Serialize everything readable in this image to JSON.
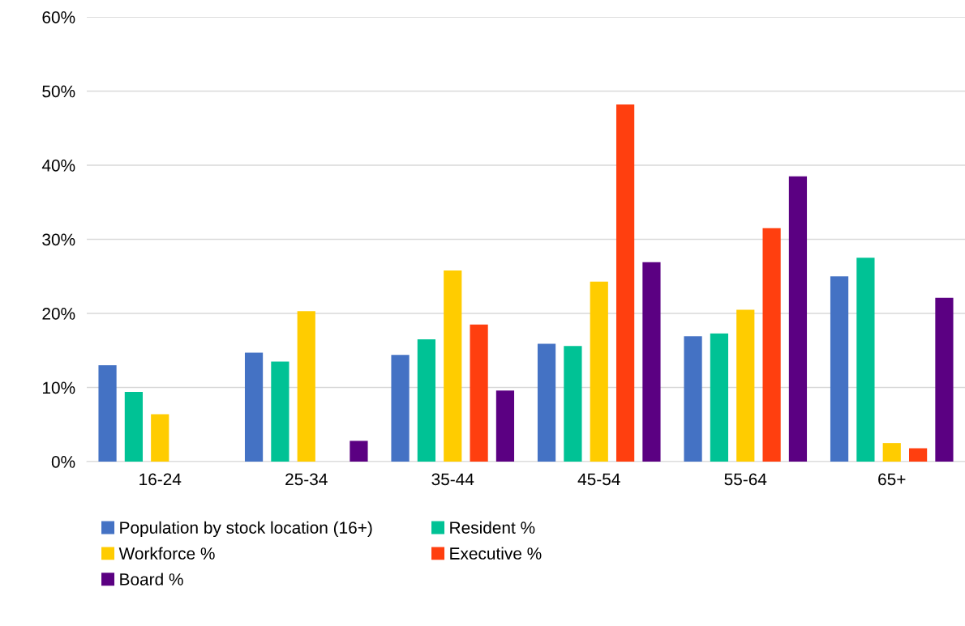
{
  "chart_data": {
    "type": "bar",
    "categories": [
      "16-24",
      "25-34",
      "35-44",
      "45-54",
      "55-64",
      "65+"
    ],
    "series": [
      {
        "name": "Population by stock location (16+)",
        "color": "#4472c4",
        "values": [
          13.0,
          14.7,
          14.4,
          15.9,
          16.9,
          25.0
        ]
      },
      {
        "name": "Resident %",
        "color": "#00c295",
        "values": [
          9.4,
          13.5,
          16.5,
          15.6,
          17.3,
          27.5
        ]
      },
      {
        "name": "Workforce %",
        "color": "#ffcc00",
        "values": [
          6.4,
          20.3,
          25.8,
          24.3,
          20.5,
          2.5
        ]
      },
      {
        "name": "Executive %",
        "color": "#ff3f0f",
        "values": [
          null,
          null,
          18.5,
          48.2,
          31.5,
          1.8
        ]
      },
      {
        "name": "Board %",
        "color": "#5b0082",
        "values": [
          null,
          2.8,
          9.6,
          26.9,
          38.5,
          22.1
        ]
      }
    ],
    "ylim": [
      0,
      60
    ],
    "yticks": [
      {
        "value": 0,
        "label": "0%"
      },
      {
        "value": 10,
        "label": "10%"
      },
      {
        "value": 20,
        "label": "20%"
      },
      {
        "value": 30,
        "label": "30%"
      },
      {
        "value": 40,
        "label": "40%"
      },
      {
        "value": 50,
        "label": "50%"
      },
      {
        "value": 60,
        "label": "60%"
      }
    ],
    "grid": "y",
    "legend": "bottom"
  }
}
